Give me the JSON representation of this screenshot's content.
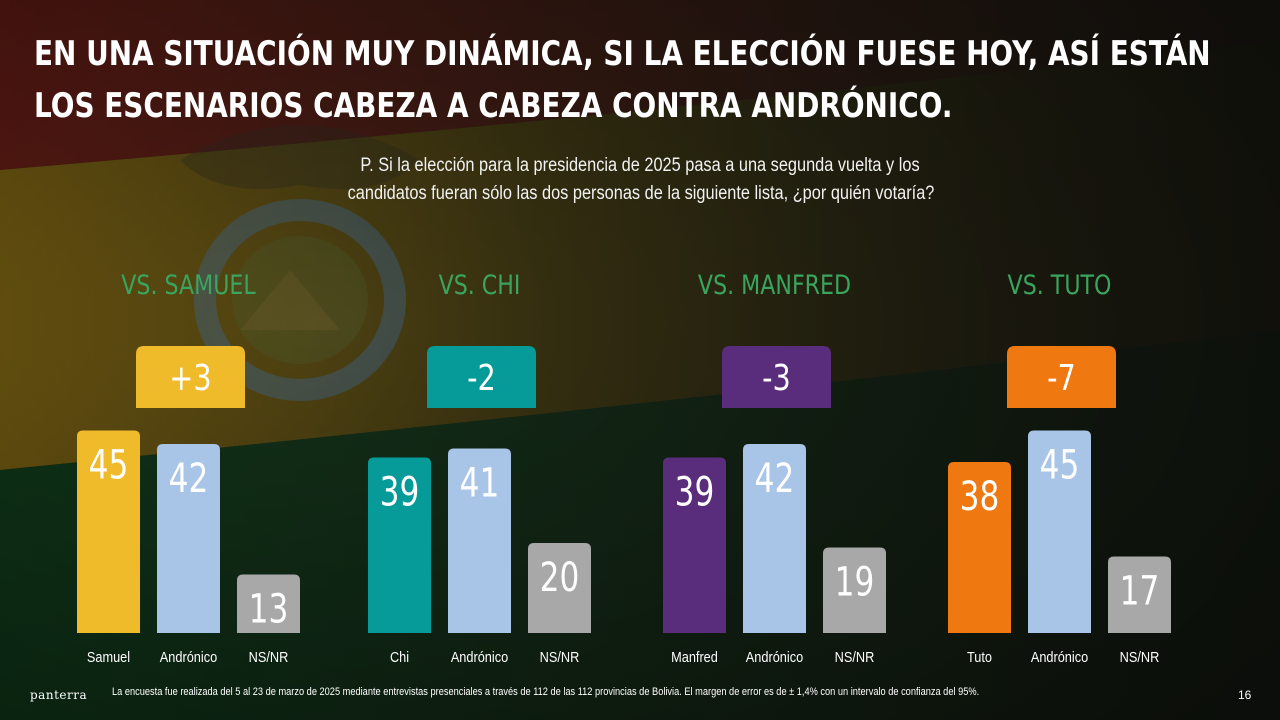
{
  "title_lines": [
    "EN UNA SITUACIÓN MUY DINÁMICA, SI LA ELECCIÓN FUESE HOY, ASÍ ESTÁN",
    "LOS ESCENARIOS CABEZA A CABEZA CONTRA ANDRÓNICO."
  ],
  "question_lines": [
    "P. Si la elección para la presidencia de 2025 pasa a una segunda vuelta y los",
    "candidatos fueran sólo las dos personas de la siguiente lista, ¿por quién votaría?"
  ],
  "footer": {
    "brand": "panterra",
    "note": "La encuesta fue realizada del 5 al 23 de marzo de 2025 mediante entrevistas presenciales a través de 112 de las 112 provincias de Bolivia. El margen de error es de ± 1,4% con un intervalo de confianza del 95%.",
    "page": "16"
  },
  "colors": {
    "andronico": "#a8c4e6",
    "nsnr": "#a8a8a8",
    "heading": "#3aa55f",
    "background": "#1c1d16"
  },
  "chart_data": [
    {
      "type": "bar",
      "title": "VS. SAMUEL",
      "diff": "+3",
      "accent": "#f0bb2a",
      "categories": [
        "Samuel",
        "Andrónico",
        "NS/NR"
      ],
      "values": [
        45,
        42,
        13
      ]
    },
    {
      "type": "bar",
      "title": "VS. CHI",
      "diff": "-2",
      "accent": "#069b98",
      "categories": [
        "Chi",
        "Andrónico",
        "NS/NR"
      ],
      "values": [
        39,
        41,
        20
      ]
    },
    {
      "type": "bar",
      "title": "VS. MANFRED",
      "diff": "-3",
      "accent": "#5a2c7c",
      "categories": [
        "Manfred",
        "Andrónico",
        "NS/NR"
      ],
      "values": [
        39,
        42,
        19
      ]
    },
    {
      "type": "bar",
      "title": "VS. TUTO",
      "diff": "-7",
      "accent": "#f07810",
      "categories": [
        "Tuto",
        "Andrónico",
        "NS/NR"
      ],
      "values": [
        38,
        45,
        17
      ]
    }
  ]
}
